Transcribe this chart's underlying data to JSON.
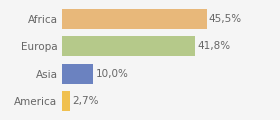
{
  "categories": [
    "America",
    "Asia",
    "Europa",
    "Africa"
  ],
  "values": [
    2.7,
    10.0,
    41.8,
    45.5
  ],
  "labels": [
    "2,7%",
    "10,0%",
    "41,8%",
    "45,5%"
  ],
  "bar_colors": [
    "#f0c050",
    "#6b82c0",
    "#b5c98a",
    "#e8b87a"
  ],
  "xlim": [
    0,
    58
  ],
  "background_color": "#f5f5f5",
  "bar_height": 0.72,
  "label_fontsize": 7.5,
  "tick_fontsize": 7.5
}
